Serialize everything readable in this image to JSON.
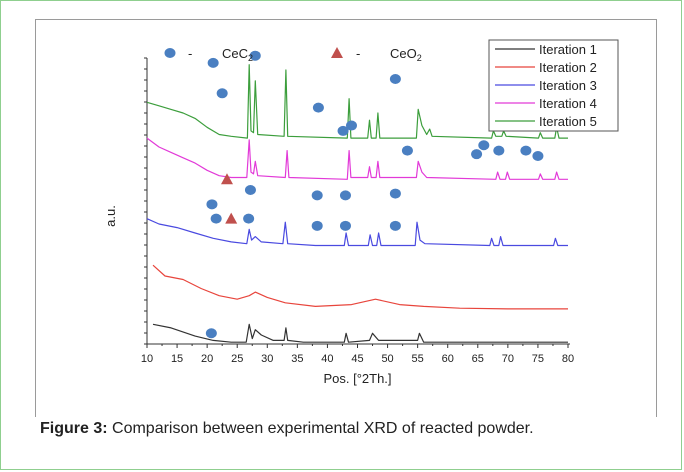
{
  "caption": {
    "label": "Figure 3:",
    "text": "Comparison between experimental XRD of reacted powder."
  },
  "chart_data": {
    "type": "line",
    "xlabel": "Pos. [°2Th.]",
    "ylabel": "a.u.",
    "xlim": [
      10,
      80
    ],
    "xticks": [
      "10",
      "15",
      "20",
      "25",
      "30",
      "35",
      "40",
      "45",
      "50",
      "55",
      "60",
      "65",
      "70",
      "75",
      "80"
    ],
    "legend_position": "top-right",
    "series": [
      {
        "name": "Iteration 1",
        "color": "#333333",
        "points": [
          [
            11,
            0.55
          ],
          [
            14,
            0.45
          ],
          [
            18,
            0.22
          ],
          [
            21,
            0.1
          ],
          [
            24,
            0.05
          ],
          [
            26.5,
            0.05
          ],
          [
            27,
            0.55
          ],
          [
            27.5,
            0.15
          ],
          [
            28,
            0.4
          ],
          [
            29,
            0.25
          ],
          [
            31,
            0.1
          ],
          [
            32.8,
            0.1
          ],
          [
            33.1,
            0.45
          ],
          [
            33.4,
            0.1
          ],
          [
            36,
            0.05
          ],
          [
            42.8,
            0.05
          ],
          [
            43.1,
            0.3
          ],
          [
            43.5,
            0.05
          ],
          [
            47,
            0.1
          ],
          [
            47.5,
            0.3
          ],
          [
            48.5,
            0.1
          ],
          [
            55,
            0.1
          ],
          [
            55.3,
            0.3
          ],
          [
            56,
            0.05
          ],
          [
            65,
            0.05
          ],
          [
            80,
            0.05
          ]
        ]
      },
      {
        "name": "Iteration 2",
        "color": "#e8453c",
        "points": [
          [
            11,
            2.2
          ],
          [
            13,
            1.9
          ],
          [
            16,
            1.8
          ],
          [
            19,
            1.55
          ],
          [
            22,
            1.35
          ],
          [
            25,
            1.25
          ],
          [
            27,
            1.35
          ],
          [
            28,
            1.45
          ],
          [
            30,
            1.3
          ],
          [
            33,
            1.15
          ],
          [
            38,
            1.05
          ],
          [
            44,
            1.1
          ],
          [
            48,
            1.25
          ],
          [
            52,
            1.1
          ],
          [
            56,
            1.05
          ],
          [
            62,
            1.0
          ],
          [
            70,
            0.98
          ],
          [
            80,
            0.98
          ]
        ]
      },
      {
        "name": "Iteration 3",
        "color": "#4a4ae0",
        "points": [
          [
            10,
            3.5
          ],
          [
            12,
            3.35
          ],
          [
            15,
            3.25
          ],
          [
            18,
            3.1
          ],
          [
            21,
            2.95
          ],
          [
            24,
            2.85
          ],
          [
            26.6,
            2.8
          ],
          [
            27,
            3.2
          ],
          [
            27.4,
            2.9
          ],
          [
            28,
            3.0
          ],
          [
            29,
            2.85
          ],
          [
            32.6,
            2.8
          ],
          [
            33,
            3.4
          ],
          [
            33.4,
            2.8
          ],
          [
            38,
            2.75
          ],
          [
            42.8,
            2.75
          ],
          [
            43.1,
            3.1
          ],
          [
            43.5,
            2.75
          ],
          [
            46.8,
            2.75
          ],
          [
            47.1,
            3.05
          ],
          [
            47.5,
            2.75
          ],
          [
            48.2,
            2.75
          ],
          [
            48.5,
            3.1
          ],
          [
            48.9,
            2.75
          ],
          [
            54.6,
            2.75
          ],
          [
            54.9,
            3.4
          ],
          [
            55.4,
            2.9
          ],
          [
            56.2,
            2.8
          ],
          [
            67,
            2.75
          ],
          [
            67.3,
            2.95
          ],
          [
            67.7,
            2.75
          ],
          [
            68.5,
            2.75
          ],
          [
            68.8,
            3.0
          ],
          [
            69.2,
            2.75
          ],
          [
            77.6,
            2.75
          ],
          [
            77.9,
            2.95
          ],
          [
            78.3,
            2.75
          ],
          [
            80,
            2.75
          ]
        ]
      },
      {
        "name": "Iteration 4",
        "color": "#e23ad8",
        "points": [
          [
            10,
            5.75
          ],
          [
            12,
            5.5
          ],
          [
            14,
            5.35
          ],
          [
            16,
            5.2
          ],
          [
            18,
            5.05
          ],
          [
            20,
            4.85
          ],
          [
            22,
            4.7
          ],
          [
            24,
            4.65
          ],
          [
            26.6,
            4.65
          ],
          [
            27,
            5.7
          ],
          [
            27.3,
            4.8
          ],
          [
            27.7,
            4.75
          ],
          [
            28,
            5.1
          ],
          [
            28.4,
            4.7
          ],
          [
            33,
            4.65
          ],
          [
            33.3,
            5.4
          ],
          [
            33.6,
            4.65
          ],
          [
            43.3,
            4.6
          ],
          [
            43.6,
            5.4
          ],
          [
            43.9,
            4.65
          ],
          [
            46.7,
            4.65
          ],
          [
            47,
            4.95
          ],
          [
            47.3,
            4.65
          ],
          [
            48.1,
            4.65
          ],
          [
            48.4,
            5.1
          ],
          [
            48.7,
            4.65
          ],
          [
            54.8,
            4.65
          ],
          [
            55.1,
            5.1
          ],
          [
            55.7,
            4.8
          ],
          [
            56.5,
            4.65
          ],
          [
            68,
            4.6
          ],
          [
            68.3,
            4.8
          ],
          [
            68.7,
            4.6
          ],
          [
            69.6,
            4.6
          ],
          [
            69.9,
            4.8
          ],
          [
            70.3,
            4.6
          ],
          [
            75.1,
            4.6
          ],
          [
            75.4,
            4.75
          ],
          [
            75.8,
            4.6
          ],
          [
            77.8,
            4.6
          ],
          [
            78.1,
            4.8
          ],
          [
            78.5,
            4.6
          ],
          [
            80,
            4.6
          ]
        ]
      },
      {
        "name": "Iteration 5",
        "color": "#3c9e3c",
        "points": [
          [
            10,
            6.75
          ],
          [
            12,
            6.65
          ],
          [
            14,
            6.55
          ],
          [
            16,
            6.45
          ],
          [
            18,
            6.3
          ],
          [
            20,
            6.05
          ],
          [
            22,
            5.85
          ],
          [
            24,
            5.8
          ],
          [
            26.7,
            5.75
          ],
          [
            27,
            7.8
          ],
          [
            27.3,
            5.95
          ],
          [
            27.7,
            5.9
          ],
          [
            28,
            7.35
          ],
          [
            28.4,
            5.85
          ],
          [
            32.8,
            5.8
          ],
          [
            33.1,
            7.65
          ],
          [
            33.4,
            5.8
          ],
          [
            43.3,
            5.75
          ],
          [
            43.6,
            6.85
          ],
          [
            43.9,
            5.75
          ],
          [
            46.7,
            5.75
          ],
          [
            47,
            6.25
          ],
          [
            47.3,
            5.75
          ],
          [
            48.1,
            5.75
          ],
          [
            48.4,
            6.45
          ],
          [
            48.7,
            5.75
          ],
          [
            54.8,
            5.75
          ],
          [
            55.1,
            6.55
          ],
          [
            55.7,
            6.1
          ],
          [
            56.5,
            5.85
          ],
          [
            57,
            6.0
          ],
          [
            57.4,
            5.8
          ],
          [
            67.3,
            5.75
          ],
          [
            67.6,
            5.95
          ],
          [
            68,
            5.8
          ],
          [
            69,
            5.8
          ],
          [
            69.3,
            5.95
          ],
          [
            69.7,
            5.8
          ],
          [
            75.1,
            5.75
          ],
          [
            75.4,
            5.9
          ],
          [
            75.8,
            5.75
          ],
          [
            77.8,
            5.75
          ],
          [
            78.1,
            6.05
          ],
          [
            78.5,
            5.75
          ],
          [
            80,
            5.75
          ]
        ]
      }
    ],
    "marker_legend": [
      {
        "symbol": "circle",
        "label": "CeC",
        "sub": "2",
        "color": "#4a7fc1"
      },
      {
        "symbol": "triangle",
        "label": "CeO",
        "sub": "2",
        "color": "#c0504d"
      }
    ],
    "markers": [
      {
        "symbol": "circle",
        "x": 21,
        "y": 7.85
      },
      {
        "symbol": "circle",
        "x": 28,
        "y": 8.05
      },
      {
        "symbol": "circle",
        "x": 22.5,
        "y": 7.0
      },
      {
        "symbol": "circle",
        "x": 38.5,
        "y": 6.6
      },
      {
        "symbol": "circle",
        "x": 51.3,
        "y": 7.4
      },
      {
        "symbol": "circle",
        "x": 42.6,
        "y": 5.95
      },
      {
        "symbol": "circle",
        "x": 44,
        "y": 6.1
      },
      {
        "symbol": "circle",
        "x": 53.3,
        "y": 5.4
      },
      {
        "symbol": "circle",
        "x": 64.8,
        "y": 5.3
      },
      {
        "symbol": "circle",
        "x": 66,
        "y": 5.55
      },
      {
        "symbol": "circle",
        "x": 68.5,
        "y": 5.4
      },
      {
        "symbol": "circle",
        "x": 73,
        "y": 5.4
      },
      {
        "symbol": "circle",
        "x": 75,
        "y": 5.25
      },
      {
        "symbol": "circle",
        "x": 72.5,
        "y": 7.3
      },
      {
        "symbol": "triangle",
        "x": 23.3,
        "y": 4.6
      },
      {
        "symbol": "circle",
        "x": 27.2,
        "y": 4.3
      },
      {
        "symbol": "circle",
        "x": 20.8,
        "y": 3.9
      },
      {
        "symbol": "circle",
        "x": 38.3,
        "y": 4.15
      },
      {
        "symbol": "circle",
        "x": 43,
        "y": 4.15
      },
      {
        "symbol": "circle",
        "x": 51.3,
        "y": 4.2
      },
      {
        "symbol": "circle",
        "x": 21.5,
        "y": 3.5
      },
      {
        "symbol": "triangle",
        "x": 24,
        "y": 3.5
      },
      {
        "symbol": "circle",
        "x": 26.9,
        "y": 3.5
      },
      {
        "symbol": "circle",
        "x": 38.3,
        "y": 3.3
      },
      {
        "symbol": "circle",
        "x": 43,
        "y": 3.3
      },
      {
        "symbol": "circle",
        "x": 51.3,
        "y": 3.3
      },
      {
        "symbol": "circle",
        "x": 20.7,
        "y": 0.3
      }
    ]
  }
}
